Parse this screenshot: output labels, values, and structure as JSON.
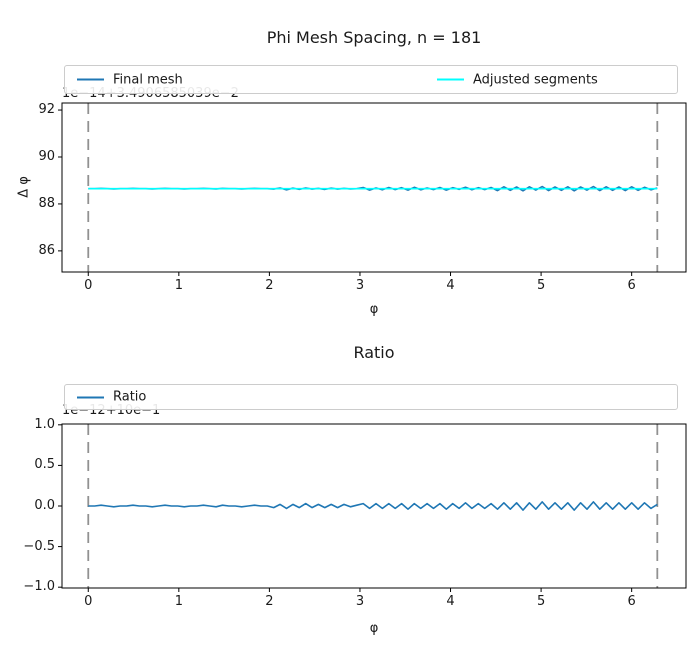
{
  "figure": {
    "background": "#ffffff",
    "frame_color": "#000000",
    "text_color": "#1a1a1a"
  },
  "chart_data": [
    {
      "type": "line",
      "title": "Phi Mesh Spacing, n = 181",
      "xlabel": "φ",
      "ylabel": "Δ φ",
      "offset_text": "1e−14+3.4906585039e−2",
      "grid": false,
      "xlim": [
        -0.29,
        6.6
      ],
      "ylim": [
        85.1,
        92.3
      ],
      "xticks": [
        {
          "v": 0,
          "label": "0"
        },
        {
          "v": 1,
          "label": "1"
        },
        {
          "v": 2,
          "label": "2"
        },
        {
          "v": 3,
          "label": "3"
        },
        {
          "v": 4,
          "label": "4"
        },
        {
          "v": 5,
          "label": "5"
        },
        {
          "v": 6,
          "label": "6"
        }
      ],
      "yticks": [
        {
          "v": 92,
          "label": "92"
        },
        {
          "v": 90,
          "label": "90"
        },
        {
          "v": 88,
          "label": "88"
        },
        {
          "v": 86,
          "label": "86"
        }
      ],
      "vlines": {
        "color": "#919191",
        "style": "dashed",
        "x": [
          0,
          6.2832
        ]
      },
      "legend": {
        "position": "above axes, full width, two columns",
        "entries": [
          {
            "label": "Final mesh",
            "color": "#1f77b4"
          },
          {
            "label": "Adjusted segments",
            "color": "#00ffff"
          }
        ]
      },
      "series": [
        {
          "name": "Final mesh",
          "color": "#1f77b4",
          "x_start": 0,
          "x_end": 6.2832,
          "y": [
            88.65,
            88.65,
            88.66,
            88.65,
            88.64,
            88.65,
            88.65,
            88.66,
            88.65,
            88.65,
            88.64,
            88.65,
            88.66,
            88.65,
            88.65,
            88.64,
            88.65,
            88.65,
            88.66,
            88.65,
            88.64,
            88.66,
            88.65,
            88.65,
            88.64,
            88.65,
            88.66,
            88.65,
            88.65,
            88.63,
            88.68,
            88.6,
            88.67,
            88.62,
            88.68,
            88.63,
            88.66,
            88.62,
            88.67,
            88.63,
            88.66,
            88.64,
            88.65,
            88.7,
            88.59,
            88.68,
            88.6,
            88.7,
            88.61,
            88.69,
            88.59,
            88.71,
            88.6,
            88.68,
            88.61,
            88.7,
            88.59,
            88.69,
            88.62,
            88.71,
            88.6,
            88.69,
            88.61,
            88.7,
            88.57,
            88.73,
            88.58,
            88.72,
            88.56,
            88.73,
            88.59,
            88.74,
            88.57,
            88.72,
            88.58,
            88.73,
            88.56,
            88.72,
            88.59,
            88.74,
            88.57,
            88.73,
            88.58,
            88.72,
            88.57,
            88.73,
            88.58,
            88.71,
            88.6,
            88.68
          ]
        },
        {
          "name": "Adjusted segments",
          "color": "#00ffff",
          "x_start": 0,
          "x_end": 6.2832,
          "y": [
            88.65,
            88.65,
            88.65,
            88.65,
            88.65,
            88.65,
            88.65,
            88.65,
            88.65,
            88.65,
            88.65,
            88.65,
            88.65,
            88.65,
            88.65,
            88.65,
            88.65,
            88.65,
            88.65,
            88.65,
            88.65,
            88.65,
            88.65,
            88.65,
            88.65,
            88.65,
            88.65,
            88.65,
            88.65,
            88.65,
            88.65,
            88.65,
            88.65,
            88.65,
            88.65,
            88.65,
            88.65,
            88.65,
            88.65,
            88.65,
            88.65,
            88.65,
            88.65,
            88.65,
            88.65,
            88.65,
            88.65,
            88.65,
            88.65,
            88.65,
            88.65,
            88.65,
            88.65,
            88.65,
            88.65,
            88.65,
            88.65,
            88.65,
            88.65,
            88.65,
            88.65,
            88.65,
            88.65,
            88.65,
            88.65,
            88.65,
            88.65,
            88.65,
            88.65,
            88.65,
            88.65,
            88.65,
            88.65,
            88.65,
            88.65,
            88.65,
            88.65,
            88.65,
            88.65,
            88.65,
            88.65,
            88.65,
            88.65,
            88.65,
            88.65,
            88.65,
            88.65,
            88.65,
            88.65,
            88.65
          ]
        }
      ]
    },
    {
      "type": "line",
      "title": "Ratio",
      "xlabel": "φ",
      "ylabel": "",
      "offset_text": "1e−12+10e−1",
      "grid": false,
      "xlim": [
        -0.29,
        6.6
      ],
      "ylim": [
        -1.01,
        1.01
      ],
      "xticks": [
        {
          "v": 0,
          "label": "0"
        },
        {
          "v": 1,
          "label": "1"
        },
        {
          "v": 2,
          "label": "2"
        },
        {
          "v": 3,
          "label": "3"
        },
        {
          "v": 4,
          "label": "4"
        },
        {
          "v": 5,
          "label": "5"
        },
        {
          "v": 6,
          "label": "6"
        }
      ],
      "yticks": [
        {
          "v": 1.0,
          "label": "1.0"
        },
        {
          "v": 0.5,
          "label": "0.5"
        },
        {
          "v": 0.0,
          "label": "0.0"
        },
        {
          "v": -0.5,
          "label": "−0.5"
        },
        {
          "v": -1.0,
          "label": "−1.0"
        }
      ],
      "vlines": {
        "color": "#919191",
        "style": "dashed",
        "x": [
          0,
          6.2832
        ]
      },
      "legend": {
        "position": "above axes, full width",
        "entries": [
          {
            "label": "Ratio",
            "color": "#1f77b4"
          }
        ]
      },
      "series": [
        {
          "name": "Ratio",
          "color": "#1f77b4",
          "x_start": 0,
          "x_end": 6.2832,
          "y": [
            0.0,
            0.0,
            0.01,
            0.0,
            -0.01,
            0.0,
            0.0,
            0.01,
            0.0,
            0.0,
            -0.01,
            0.0,
            0.01,
            0.0,
            0.0,
            -0.01,
            0.0,
            0.0,
            0.01,
            0.0,
            -0.01,
            0.01,
            0.0,
            0.0,
            -0.01,
            0.0,
            0.01,
            0.0,
            0.0,
            -0.02,
            0.02,
            -0.03,
            0.02,
            -0.02,
            0.03,
            -0.02,
            0.02,
            -0.02,
            0.02,
            -0.02,
            0.02,
            -0.01,
            0.01,
            0.03,
            -0.03,
            0.03,
            -0.03,
            0.03,
            -0.03,
            0.03,
            -0.04,
            0.03,
            -0.03,
            0.03,
            -0.03,
            0.03,
            -0.04,
            0.03,
            -0.03,
            0.04,
            -0.03,
            0.03,
            -0.03,
            0.03,
            -0.04,
            0.04,
            -0.04,
            0.04,
            -0.05,
            0.04,
            -0.04,
            0.05,
            -0.04,
            0.04,
            -0.04,
            0.04,
            -0.05,
            0.04,
            -0.04,
            0.05,
            -0.04,
            0.04,
            -0.04,
            0.04,
            -0.04,
            0.04,
            -0.04,
            0.04,
            -0.03,
            0.02
          ]
        }
      ]
    }
  ]
}
